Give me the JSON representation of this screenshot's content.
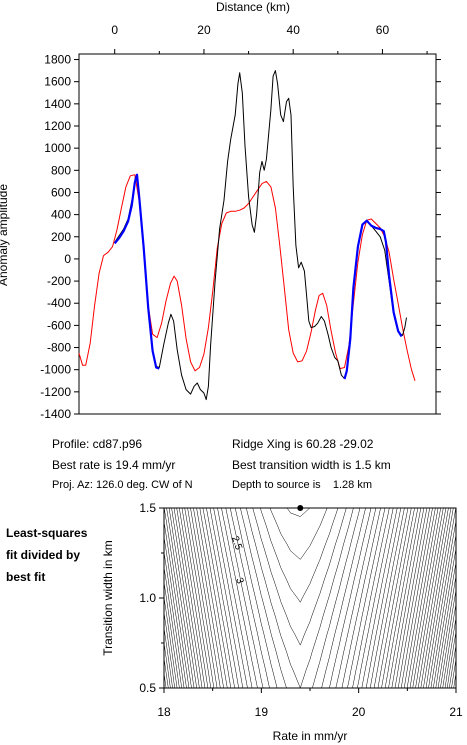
{
  "chart_data": [
    {
      "type": "line",
      "xlabel": "Distance (km)",
      "ylabel": "Anomaly amplitude",
      "xlim": [
        -8,
        72
      ],
      "ylim": [
        -1400,
        1850
      ],
      "x_ticks": [
        0,
        20,
        40,
        60
      ],
      "y_ticks": [
        -1400,
        -1200,
        -1000,
        -800,
        -600,
        -400,
        -200,
        0,
        200,
        400,
        600,
        800,
        1000,
        1200,
        1400,
        1600,
        1800
      ],
      "grid": false,
      "series": [
        {
          "color": "#ff0000",
          "points": [
            [
              -8,
              -850
            ],
            [
              -7.2,
              -960
            ],
            [
              -6.5,
              -960
            ],
            [
              -5.5,
              -760
            ],
            [
              -4.5,
              -420
            ],
            [
              -3.5,
              -130
            ],
            [
              -2.5,
              30
            ],
            [
              -1.5,
              60
            ],
            [
              -0.5,
              110
            ],
            [
              0.5,
              260
            ],
            [
              1.5,
              460
            ],
            [
              2.5,
              650
            ],
            [
              3.5,
              750
            ],
            [
              4.5,
              760
            ],
            [
              5.5,
              520
            ],
            [
              6.5,
              60
            ],
            [
              7.5,
              -420
            ],
            [
              8.5,
              -680
            ],
            [
              9.5,
              -710
            ],
            [
              10.5,
              -580
            ],
            [
              11.5,
              -380
            ],
            [
              12.5,
              -220
            ],
            [
              13.3,
              -155
            ],
            [
              14,
              -200
            ],
            [
              15,
              -420
            ],
            [
              16,
              -720
            ],
            [
              17,
              -930
            ],
            [
              18,
              -1010
            ],
            [
              19,
              -980
            ],
            [
              20,
              -860
            ],
            [
              21,
              -620
            ],
            [
              22,
              -280
            ],
            [
              23,
              100
            ],
            [
              24,
              320
            ],
            [
              25,
              415
            ],
            [
              26,
              430
            ],
            [
              27,
              430
            ],
            [
              28,
              440
            ],
            [
              29,
              460
            ],
            [
              30,
              500
            ],
            [
              31,
              560
            ],
            [
              32,
              620
            ],
            [
              33,
              680
            ],
            [
              34,
              700
            ],
            [
              35,
              650
            ],
            [
              36,
              460
            ],
            [
              37,
              120
            ],
            [
              38,
              -260
            ],
            [
              39,
              -640
            ],
            [
              40,
              -850
            ],
            [
              41,
              -930
            ],
            [
              42,
              -920
            ],
            [
              43,
              -830
            ],
            [
              44,
              -660
            ],
            [
              45,
              -460
            ],
            [
              45.8,
              -330
            ],
            [
              46.6,
              -310
            ],
            [
              47.5,
              -420
            ],
            [
              48.5,
              -650
            ],
            [
              49.5,
              -850
            ],
            [
              50.5,
              -990
            ],
            [
              51.5,
              -980
            ],
            [
              52.5,
              -780
            ],
            [
              53.5,
              -400
            ],
            [
              54.5,
              -30
            ],
            [
              55.5,
              220
            ],
            [
              56.5,
              350
            ],
            [
              57.5,
              360
            ],
            [
              58.5,
              320
            ],
            [
              59.5,
              280
            ],
            [
              60.5,
              200
            ],
            [
              61.5,
              60
            ],
            [
              62.5,
              -180
            ],
            [
              63.5,
              -400
            ],
            [
              64.5,
              -620
            ],
            [
              65.5,
              -820
            ],
            [
              66.5,
              -1000
            ],
            [
              67.3,
              -1100
            ]
          ]
        },
        {
          "color": "#000000",
          "points": [
            [
              0,
              150
            ],
            [
              1,
              210
            ],
            [
              2,
              270
            ],
            [
              3,
              360
            ],
            [
              4,
              560
            ],
            [
              4.6,
              730
            ],
            [
              5,
              760
            ],
            [
              5.5,
              560
            ],
            [
              6.5,
              120
            ],
            [
              7.5,
              -420
            ],
            [
              8.5,
              -820
            ],
            [
              9.3,
              -970
            ],
            [
              10,
              -980
            ],
            [
              11,
              -770
            ],
            [
              12,
              -580
            ],
            [
              12.6,
              -500
            ],
            [
              13.2,
              -560
            ],
            [
              14,
              -820
            ],
            [
              15,
              -1050
            ],
            [
              16,
              -1180
            ],
            [
              17,
              -1220
            ],
            [
              17.8,
              -1150
            ],
            [
              18.5,
              -1120
            ],
            [
              19.2,
              -1180
            ],
            [
              20,
              -1210
            ],
            [
              20.5,
              -1270
            ],
            [
              21,
              -1150
            ],
            [
              21.5,
              -780
            ],
            [
              22.5,
              -200
            ],
            [
              23.5,
              270
            ],
            [
              24.5,
              530
            ],
            [
              25.3,
              880
            ],
            [
              26,
              1080
            ],
            [
              27,
              1300
            ],
            [
              27.6,
              1580
            ],
            [
              28,
              1680
            ],
            [
              28.6,
              1500
            ],
            [
              29.2,
              1020
            ],
            [
              30,
              560
            ],
            [
              30.8,
              310
            ],
            [
              31.3,
              240
            ],
            [
              31.8,
              400
            ],
            [
              32.5,
              780
            ],
            [
              33,
              880
            ],
            [
              33.5,
              800
            ],
            [
              34,
              900
            ],
            [
              35,
              1350
            ],
            [
              35.5,
              1650
            ],
            [
              36,
              1700
            ],
            [
              36.5,
              1580
            ],
            [
              37.2,
              1300
            ],
            [
              37.8,
              1240
            ],
            [
              38.5,
              1420
            ],
            [
              39,
              1450
            ],
            [
              39.5,
              1300
            ],
            [
              40,
              650
            ],
            [
              40.6,
              120
            ],
            [
              41.2,
              -80
            ],
            [
              41.8,
              -30
            ],
            [
              42.5,
              -110
            ],
            [
              43,
              -330
            ],
            [
              43.5,
              -560
            ],
            [
              44,
              -620
            ],
            [
              44.8,
              -610
            ],
            [
              45.5,
              -580
            ],
            [
              46.3,
              -520
            ],
            [
              47,
              -560
            ],
            [
              47.8,
              -680
            ],
            [
              48.5,
              -800
            ],
            [
              49.3,
              -890
            ],
            [
              50,
              -920
            ],
            [
              50.8,
              -1050
            ],
            [
              51.5,
              -1080
            ],
            [
              52,
              -1000
            ],
            [
              52.8,
              -700
            ],
            [
              53.5,
              -250
            ],
            [
              54.5,
              120
            ],
            [
              55.5,
              310
            ],
            [
              56.5,
              340
            ],
            [
              57.5,
              300
            ],
            [
              58.5,
              250
            ],
            [
              59.5,
              200
            ],
            [
              60.5,
              80
            ],
            [
              61.5,
              -200
            ],
            [
              62.5,
              -500
            ],
            [
              63.5,
              -660
            ],
            [
              64.5,
              -690
            ],
            [
              65,
              -620
            ],
            [
              65.4,
              -530
            ]
          ]
        },
        {
          "color": "#0000ff",
          "points": [
            [
              0,
              140
            ],
            [
              1,
              190
            ],
            [
              2,
              250
            ],
            [
              3,
              340
            ],
            [
              3.8,
              480
            ],
            [
              4.5,
              690
            ],
            [
              5,
              760
            ],
            [
              5.5,
              560
            ],
            [
              6.5,
              100
            ],
            [
              7.5,
              -440
            ],
            [
              8.5,
              -830
            ],
            [
              9.3,
              -980
            ],
            [
              10,
              -990
            ]
          ]
        },
        {
          "color": "#0000ff",
          "points": [
            [
              51.5,
              -1085
            ],
            [
              52,
              -1010
            ],
            [
              52.8,
              -720
            ],
            [
              53.5,
              -260
            ],
            [
              54.5,
              110
            ],
            [
              55.5,
              310
            ],
            [
              56.5,
              345
            ],
            [
              57.5,
              300
            ],
            [
              58.5,
              280
            ],
            [
              59.5,
              270
            ],
            [
              60.3,
              250
            ],
            [
              60.8,
              150
            ],
            [
              61.5,
              -150
            ],
            [
              62.5,
              -480
            ],
            [
              63.5,
              -650
            ],
            [
              64.3,
              -700
            ]
          ]
        }
      ]
    },
    {
      "type": "contour",
      "xlabel": "Rate in mm/yr",
      "ylabel": "Transition width in km",
      "xlim": [
        18,
        21
      ],
      "ylim": [
        0.5,
        1.5
      ],
      "x_ticks": [
        18,
        19,
        20,
        21
      ],
      "y_ticks": [
        0.5,
        1.0,
        1.5
      ],
      "best_fit": {
        "rate": 19.4,
        "width": 1.5
      },
      "contour_labels": [
        {
          "text": "2.5",
          "x": 18.72,
          "y": 1.3
        },
        {
          "text": "3",
          "x": 18.75,
          "y": 1.09
        }
      ]
    }
  ],
  "info": {
    "profile": "Profile: cd87.p96",
    "ridge_xing": "Ridge Xing is 60.28 -29.02",
    "best_rate": "Best rate is 19.4 mm/yr",
    "best_width": "Best transition width is 1.5 km",
    "proj_az": "Proj. Az: 126.0 deg. CW of N",
    "depth": "Depth to source is    1.28 km"
  },
  "caption_lines": [
    "Least-squares",
    "fit divided by",
    "best fit"
  ]
}
